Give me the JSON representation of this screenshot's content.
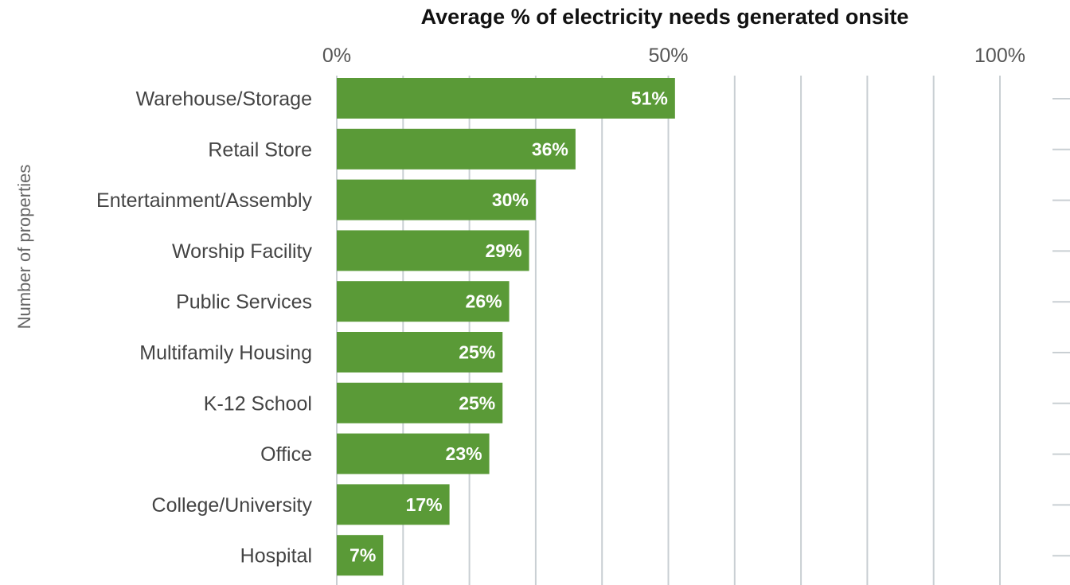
{
  "chart_data": {
    "type": "bar",
    "orientation": "horizontal",
    "title": "Average % of electricity needs generated onsite",
    "ylabel": "Number of properties",
    "categories": [
      "Warehouse/Storage",
      "Retail Store",
      "Entertainment/Assembly",
      "Worship Facility",
      "Public Services",
      "Multifamily Housing",
      "K-12 School",
      "Office",
      "College/University",
      "Hospital"
    ],
    "values": [
      51,
      36,
      30,
      29,
      26,
      25,
      25,
      23,
      17,
      7
    ],
    "value_labels": [
      "51%",
      "36%",
      "30%",
      "29%",
      "26%",
      "25%",
      "25%",
      "23%",
      "17%",
      "7%"
    ],
    "xlim": [
      0,
      100
    ],
    "x_ticks": [
      0,
      50,
      100
    ],
    "x_tick_labels": [
      "0%",
      "50%",
      "100%"
    ],
    "grid_step": 10,
    "grid": true,
    "colors": {
      "bar": "#5a9a37",
      "grid": "#c9cfd3"
    }
  }
}
